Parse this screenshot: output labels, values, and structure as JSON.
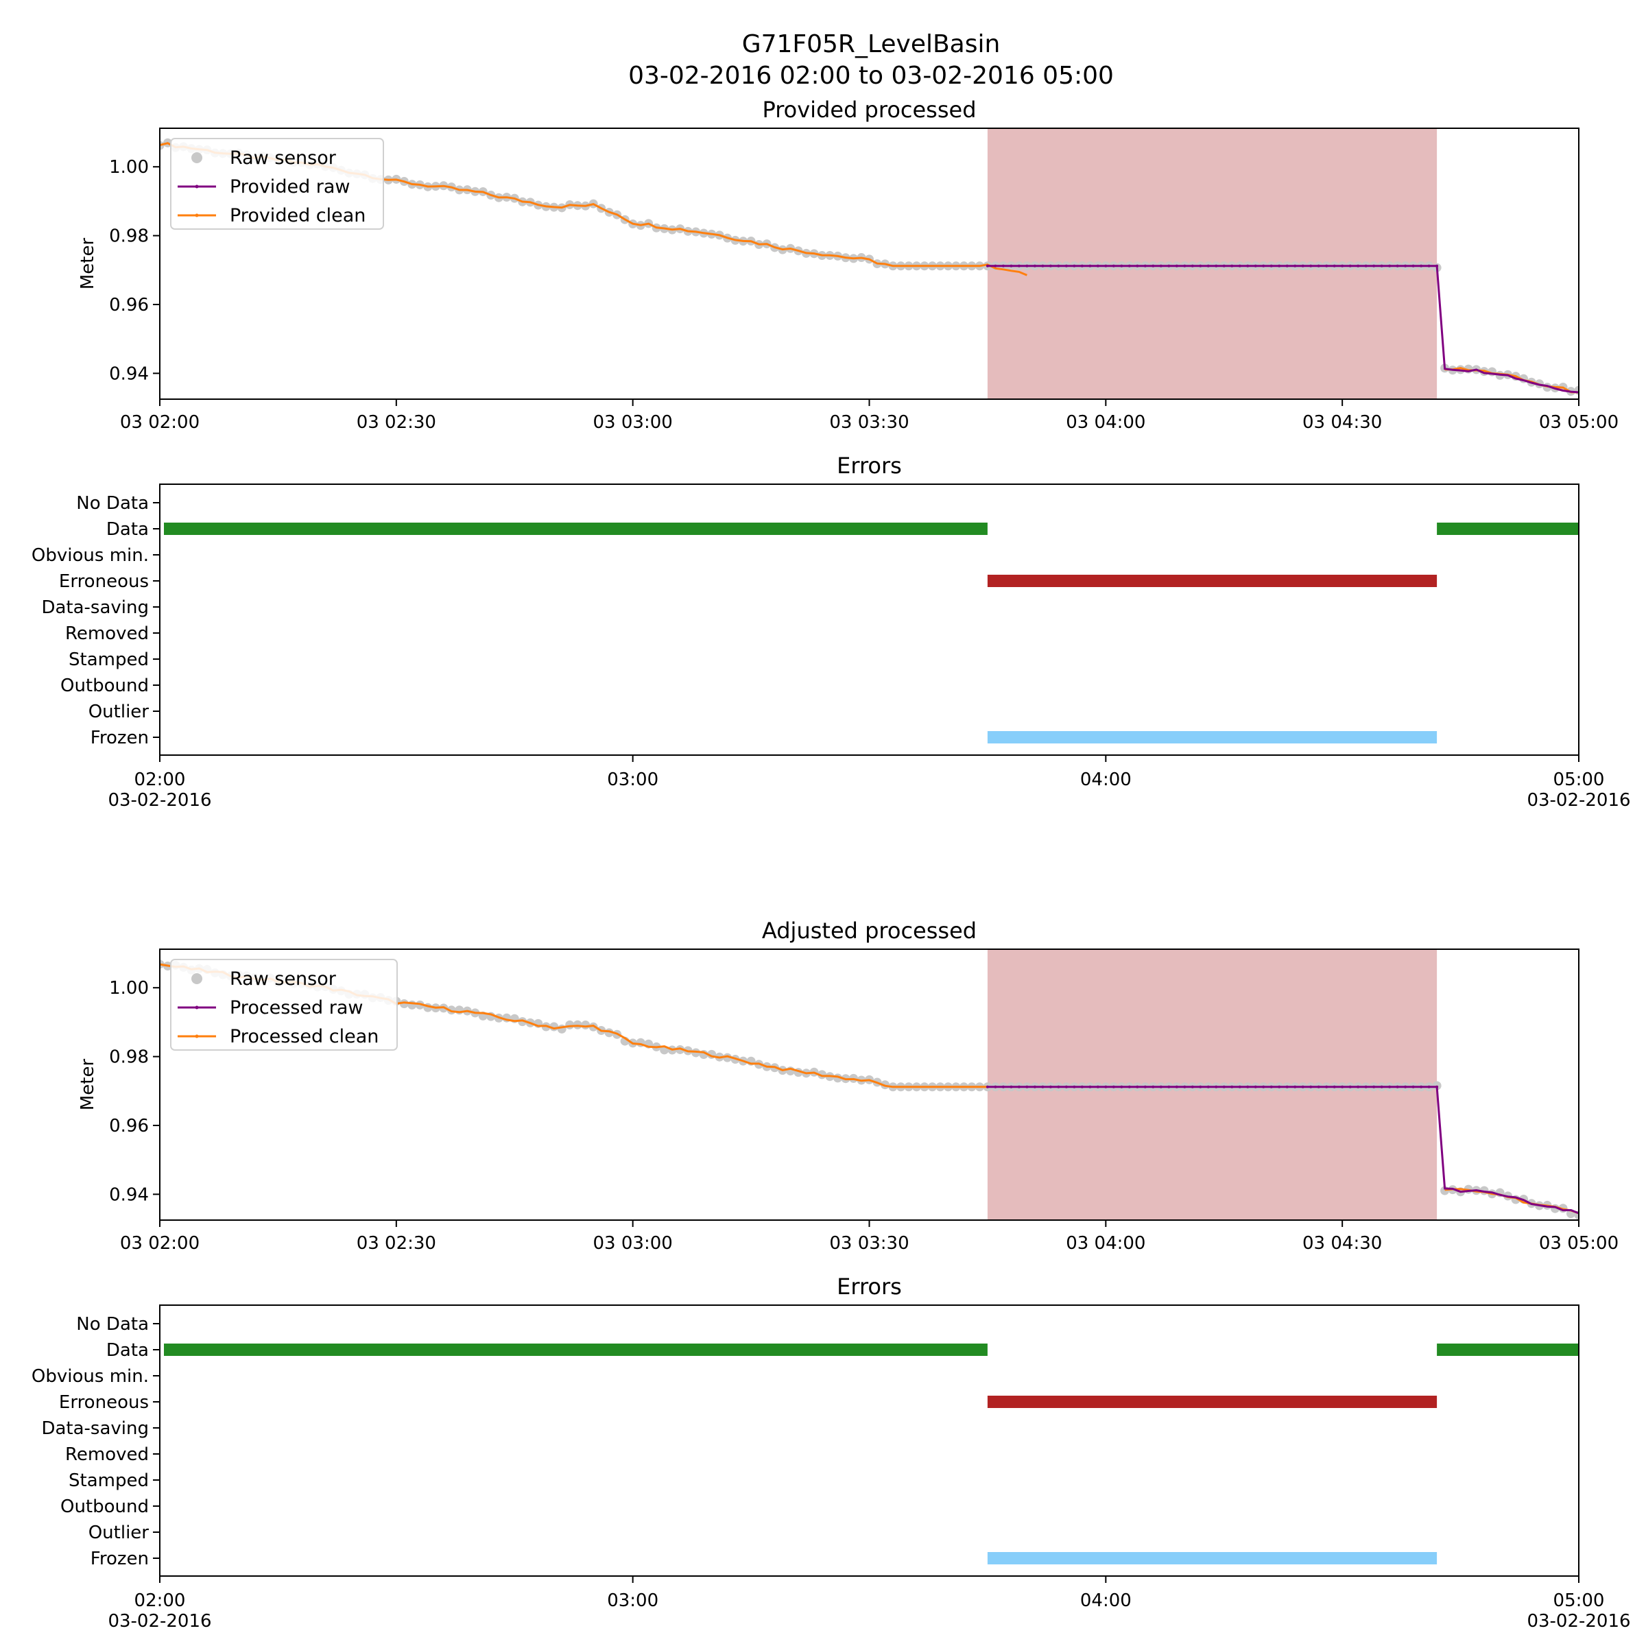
{
  "figure": {
    "title": "G71F05R_LevelBasin",
    "subtitle": "03-02-2016 02:00 to 03-02-2016 05:00"
  },
  "colors": {
    "raw_sensor": "#c8c8c8",
    "raw_line": "#800080",
    "clean_line": "#ff7f0e",
    "error_span": "#e5bcbd",
    "error_data": "#228b22",
    "error_erroneous": "#b22222",
    "error_frozen": "#87cefa"
  },
  "chart_data": [
    {
      "type": "line",
      "title": "Provided processed",
      "xlabel": "",
      "ylabel": "Meter",
      "x_range": [
        "03-02-2016 02:00",
        "03-02-2016 05:00"
      ],
      "ylim": [
        0.9325,
        1.0112
      ],
      "x_ticks": [
        "03 02:00",
        "03 02:30",
        "03 03:00",
        "03 03:30",
        "03 04:00",
        "03 04:30",
        "03 05:00"
      ],
      "y_ticks": [
        "1.00",
        "0.98",
        "0.96",
        "0.94"
      ],
      "grid": false,
      "legend_position": "upper-left",
      "legend": [
        "Raw sensor",
        "Provided raw",
        "Provided clean"
      ],
      "shaded_error_span": [
        "03:45",
        "04:42"
      ],
      "series": [
        {
          "name": "Raw sensor",
          "style": "scatter",
          "points": [
            [
              "02:00",
              1.0068
            ],
            [
              "02:10",
              1.0034
            ],
            [
              "02:20",
              1.0005
            ],
            [
              "02:30",
              0.9958
            ],
            [
              "02:40",
              0.9927
            ],
            [
              "02:45",
              0.9905
            ],
            [
              "02:50",
              0.9885
            ],
            [
              "02:55",
              0.9888
            ],
            [
              "02:58",
              0.9863
            ],
            [
              "03:00",
              0.9838
            ],
            [
              "03:10",
              0.9806
            ],
            [
              "03:20",
              0.976
            ],
            [
              "03:30",
              0.9728
            ],
            [
              "03:33",
              0.9712
            ],
            [
              "03:45",
              0.9712
            ],
            [
              "04:42",
              0.9712
            ],
            [
              "04:43",
              0.9415
            ],
            [
              "04:47",
              0.9408
            ],
            [
              "04:50",
              0.94
            ],
            [
              "04:55",
              0.9368
            ],
            [
              "05:00",
              0.9345
            ]
          ]
        },
        {
          "name": "Provided raw",
          "style": "line",
          "points": [
            [
              "03:45",
              0.9712
            ],
            [
              "04:42",
              0.9712
            ],
            [
              "04:43",
              0.9415
            ],
            [
              "04:47",
              0.9408
            ],
            [
              "04:50",
              0.94
            ],
            [
              "04:55",
              0.9368
            ],
            [
              "05:00",
              0.9345
            ]
          ]
        },
        {
          "name": "Provided clean",
          "style": "line",
          "points": [
            [
              "02:00",
              1.0068
            ],
            [
              "02:10",
              1.0034
            ],
            [
              "02:20",
              1.0005
            ],
            [
              "02:30",
              0.9958
            ],
            [
              "02:40",
              0.9927
            ],
            [
              "02:45",
              0.9905
            ],
            [
              "02:50",
              0.9885
            ],
            [
              "02:55",
              0.9888
            ],
            [
              "02:58",
              0.9863
            ],
            [
              "03:00",
              0.9838
            ],
            [
              "03:10",
              0.9806
            ],
            [
              "03:20",
              0.976
            ],
            [
              "03:30",
              0.9728
            ],
            [
              "03:33",
              0.9712
            ],
            [
              "03:45",
              0.9712
            ],
            [
              "03:50",
              0.9685
            ],
            [
              "04:43",
              0.9415
            ],
            [
              "04:47",
              0.9408
            ],
            [
              "04:50",
              0.94
            ],
            [
              "04:55",
              0.9368
            ],
            [
              "05:00",
              0.9345
            ]
          ]
        }
      ]
    },
    {
      "type": "timeline",
      "title": "Errors",
      "xlabel": "",
      "ylabel": "",
      "categories": [
        "No Data",
        "Data",
        "Obvious min.",
        "Erroneous",
        "Data-saving",
        "Removed",
        "Stamped",
        "Outbound",
        "Outlier",
        "Frozen"
      ],
      "x_ticks": [
        "02:00",
        "03:00",
        "04:00",
        "05:00"
      ],
      "x_tick_dates": [
        "03-02-2016",
        "",
        "",
        "03-02-2016"
      ],
      "segments": [
        {
          "category": "Data",
          "start": "02:00",
          "end": "03:45"
        },
        {
          "category": "Data",
          "start": "04:42",
          "end": "05:00"
        },
        {
          "category": "Erroneous",
          "start": "03:45",
          "end": "04:42"
        },
        {
          "category": "Frozen",
          "start": "03:45",
          "end": "04:42"
        }
      ]
    },
    {
      "type": "line",
      "title": "Adjusted processed",
      "xlabel": "",
      "ylabel": "Meter",
      "x_range": [
        "03-02-2016 02:00",
        "03-02-2016 05:00"
      ],
      "ylim": [
        0.9325,
        1.0112
      ],
      "x_ticks": [
        "03 02:00",
        "03 02:30",
        "03 03:00",
        "03 03:30",
        "03 04:00",
        "03 04:30",
        "03 05:00"
      ],
      "y_ticks": [
        "1.00",
        "0.98",
        "0.96",
        "0.94"
      ],
      "grid": false,
      "legend_position": "upper-left",
      "legend": [
        "Raw sensor",
        "Processed raw",
        "Processed clean"
      ],
      "shaded_error_span": [
        "03:45",
        "04:42"
      ],
      "series": [
        {
          "name": "Raw sensor",
          "style": "scatter",
          "points": [
            [
              "02:00",
              1.0068
            ],
            [
              "02:10",
              1.0034
            ],
            [
              "02:20",
              1.0005
            ],
            [
              "02:30",
              0.9958
            ],
            [
              "02:40",
              0.9927
            ],
            [
              "02:45",
              0.9905
            ],
            [
              "02:50",
              0.9885
            ],
            [
              "02:55",
              0.9888
            ],
            [
              "02:58",
              0.9863
            ],
            [
              "03:00",
              0.9838
            ],
            [
              "03:10",
              0.9806
            ],
            [
              "03:20",
              0.976
            ],
            [
              "03:30",
              0.9728
            ],
            [
              "03:33",
              0.9712
            ],
            [
              "03:45",
              0.9712
            ],
            [
              "04:42",
              0.9712
            ],
            [
              "04:43",
              0.9415
            ],
            [
              "04:47",
              0.9408
            ],
            [
              "04:50",
              0.94
            ],
            [
              "04:55",
              0.9368
            ],
            [
              "05:00",
              0.9345
            ]
          ]
        },
        {
          "name": "Processed raw",
          "style": "line",
          "points": [
            [
              "03:45",
              0.9712
            ],
            [
              "04:42",
              0.9712
            ],
            [
              "04:43",
              0.9415
            ],
            [
              "04:47",
              0.9408
            ],
            [
              "04:50",
              0.94
            ],
            [
              "04:55",
              0.9368
            ],
            [
              "05:00",
              0.9345
            ]
          ]
        },
        {
          "name": "Processed clean",
          "style": "line",
          "points": [
            [
              "02:00",
              1.0068
            ],
            [
              "02:10",
              1.0034
            ],
            [
              "02:20",
              1.0005
            ],
            [
              "02:30",
              0.9958
            ],
            [
              "02:40",
              0.9927
            ],
            [
              "02:45",
              0.9905
            ],
            [
              "02:50",
              0.9885
            ],
            [
              "02:55",
              0.9888
            ],
            [
              "02:58",
              0.9863
            ],
            [
              "03:00",
              0.9838
            ],
            [
              "03:10",
              0.9806
            ],
            [
              "03:20",
              0.976
            ],
            [
              "03:30",
              0.9728
            ],
            [
              "03:33",
              0.9712
            ],
            [
              "03:45",
              0.9712
            ],
            [
              "04:43",
              0.9415
            ],
            [
              "04:47",
              0.9408
            ],
            [
              "04:50",
              0.94
            ],
            [
              "04:55",
              0.9368
            ],
            [
              "05:00",
              0.9345
            ]
          ]
        }
      ]
    },
    {
      "type": "timeline",
      "title": "Errors",
      "xlabel": "",
      "ylabel": "",
      "categories": [
        "No Data",
        "Data",
        "Obvious min.",
        "Erroneous",
        "Data-saving",
        "Removed",
        "Stamped",
        "Outbound",
        "Outlier",
        "Frozen"
      ],
      "x_ticks": [
        "02:00",
        "03:00",
        "04:00",
        "05:00"
      ],
      "x_tick_dates": [
        "03-02-2016",
        "",
        "",
        "03-02-2016"
      ],
      "segments": [
        {
          "category": "Data",
          "start": "02:00",
          "end": "03:45"
        },
        {
          "category": "Data",
          "start": "04:42",
          "end": "05:00"
        },
        {
          "category": "Erroneous",
          "start": "03:45",
          "end": "04:42"
        },
        {
          "category": "Frozen",
          "start": "03:45",
          "end": "04:42"
        }
      ]
    }
  ]
}
